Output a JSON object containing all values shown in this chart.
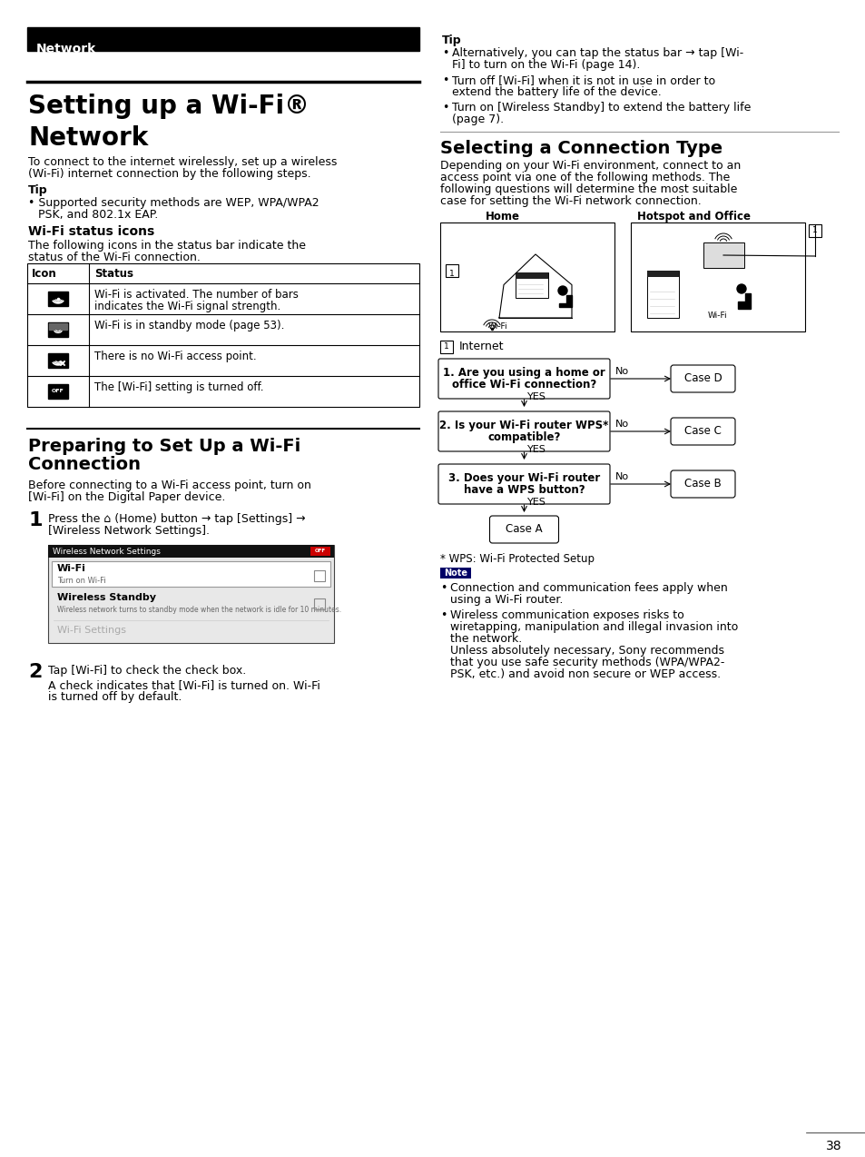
{
  "bg_color": "#ffffff",
  "network_bar_text": "Network",
  "title_line1": "Setting up a Wi-Fi®",
  "title_line2": "Network",
  "intro_line1": "To connect to the internet wirelessly, set up a wireless",
  "intro_line2": "(Wi-Fi) internet connection by the following steps.",
  "tip_label": "Tip",
  "tip_bullet": "• Supported security methods are WEP, WPA/WPA2",
  "tip_bullet2": "PSK, and 802.1x EAP.",
  "wifi_status_title": "Wi-Fi status icons",
  "wifi_status_line1": "The following icons in the status bar indicate the",
  "wifi_status_line2": "status of the Wi-Fi connection.",
  "tbl_hdr1": "Icon",
  "tbl_hdr2": "Status",
  "tbl_rows": [
    "Wi-Fi is activated. The number of bars\nindicates the Wi-Fi signal strength.",
    "Wi-Fi is in standby mode (page 53).",
    "There is no Wi-Fi access point.",
    "The [Wi-Fi] setting is turned off."
  ],
  "prep_title1": "Preparing to Set Up a Wi-Fi",
  "prep_title2": "Connection",
  "prep_desc1": "Before connecting to a Wi-Fi access point, turn on",
  "prep_desc2": "[Wi-Fi] on the Digital Paper device.",
  "step1_text1": "Press the ⌂ (Home) button → tap [Settings] →",
  "step1_text2": "[Wireless Network Settings].",
  "step2_text": "Tap [Wi-Fi] to check the check box.",
  "step2_sub1": "A check indicates that [Wi-Fi] is turned on. Wi-Fi",
  "step2_sub2": "is turned off by default.",
  "rtip_label": "Tip",
  "rtip_b1_l1": "Alternatively, you can tap the status bar → tap [Wi-",
  "rtip_b1_l2": "Fi] to turn on the Wi-Fi (page 14).",
  "rtip_b2_l1": "Turn off [Wi-Fi] when it is not in use in order to",
  "rtip_b2_l2": "extend the battery life of the device.",
  "rtip_b3_l1": "Turn on [Wireless Standby] to extend the battery life",
  "rtip_b3_l2": "(page 7).",
  "conn_title": "Selecting a Connection Type",
  "conn_desc1": "Depending on your Wi-Fi environment, connect to an",
  "conn_desc2": "access point via one of the following methods. The",
  "conn_desc3": "following questions will determine the most suitable",
  "conn_desc4": "case for setting the Wi-Fi network connection.",
  "home_lbl": "Home",
  "hotspot_lbl": "Hotspot and Office",
  "internet_lbl": "Internet",
  "q1": "1. Are you using a home or\noffice Wi-Fi connection?",
  "q2": "2. Is your Wi-Fi router WPS*\ncompatible?",
  "q3": "3. Does your Wi-Fi router\nhave a WPS button?",
  "case_a": "Case A",
  "case_b": "Case B",
  "case_c": "Case C",
  "case_d": "Case D",
  "wps_note": "* WPS: Wi-Fi Protected Setup",
  "note_lbl": "Note",
  "note_b1_l1": "Connection and communication fees apply when",
  "note_b1_l2": "using a Wi-Fi router.",
  "note_b2_l1": "Wireless communication exposes risks to",
  "note_b2_l2": "wiretapping, manipulation and illegal invasion into",
  "note_b2_l3": "the network.",
  "note_b2_l4": "Unless absolutely necessary, Sony recommends",
  "note_b2_l5": "that you use safe security methods (WPA/WPA2-",
  "note_b2_l6": "PSK, etc.) and avoid non secure or WEP access.",
  "page_num": "38"
}
